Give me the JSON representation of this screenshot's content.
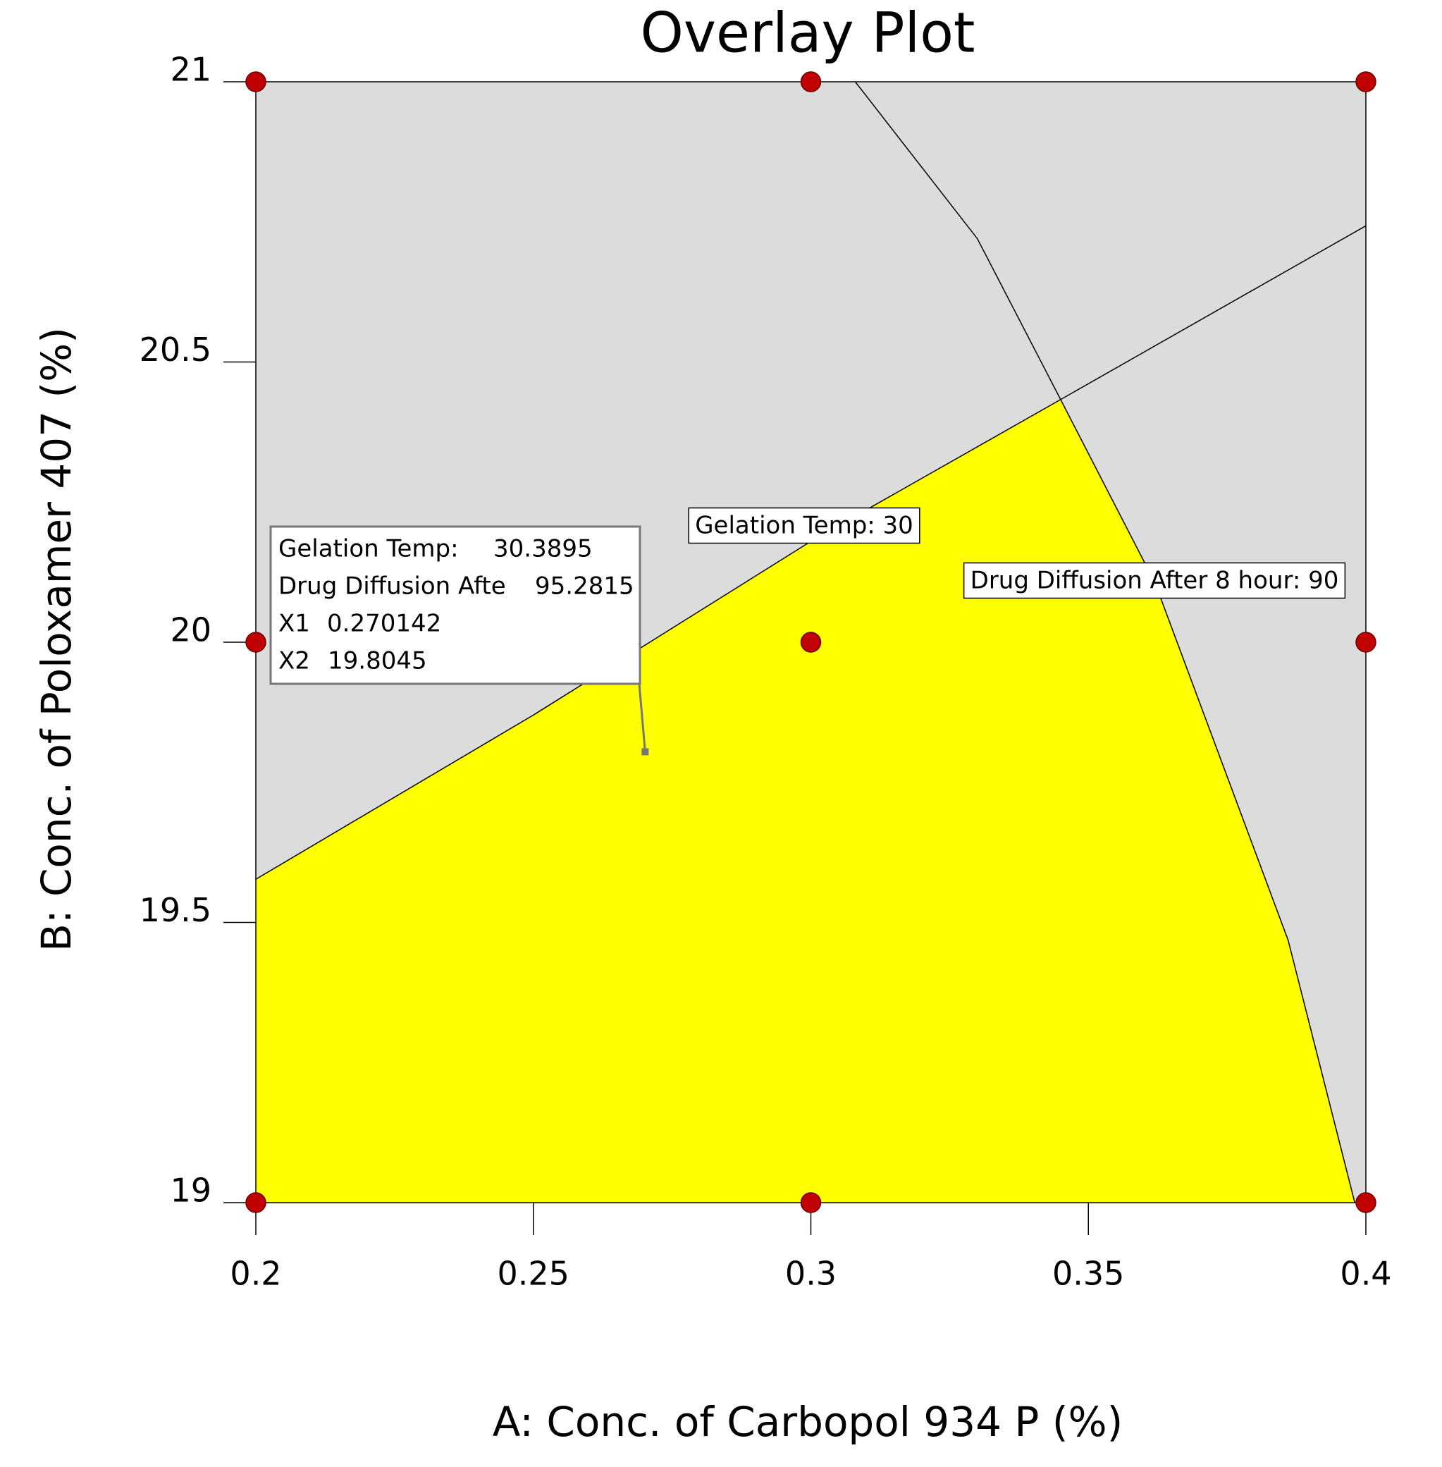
{
  "chart_data": {
    "type": "overlay",
    "title": "Overlay Plot",
    "x_label": "A: Conc. of Carbopol 934 P (%)",
    "y_label": "B: Conc. of Poloxamer 407 (%)",
    "xlim": [
      0.2,
      0.4
    ],
    "ylim": [
      19,
      21
    ],
    "xticks": [
      0.2,
      0.25,
      0.3,
      0.35,
      0.4
    ],
    "yticks": [
      19,
      19.5,
      20,
      20.5,
      21
    ],
    "background_color": "#dcdcdc",
    "region_color": "#ffff00",
    "contours": [
      {
        "label": "Gelation Temp: 30",
        "x": [
          0.2,
          0.25,
          0.3,
          0.345,
          0.4
        ],
        "y": [
          19.577,
          19.87,
          20.18,
          20.433,
          20.743
        ]
      },
      {
        "label": "Drug Diffusion After 8 hour: 90",
        "x": [
          0.308,
          0.33,
          0.345,
          0.362,
          0.386,
          0.398
        ],
        "y": [
          21,
          20.72,
          20.433,
          20.106,
          19.468,
          19
        ]
      }
    ],
    "design_points": {
      "color": "#c00000",
      "x": [
        0.2,
        0.3,
        0.4,
        0.2,
        0.3,
        0.4,
        0.2,
        0.3,
        0.4
      ],
      "y": [
        21,
        21,
        21,
        20,
        20,
        20,
        19,
        19,
        19
      ]
    },
    "flag": {
      "rows": [
        {
          "label": "Gelation Temp:",
          "value": 30.3895
        },
        {
          "label": "Drug Diffusion Afte",
          "value": 95.2815
        },
        {
          "label": "X1",
          "value": 0.270142
        },
        {
          "label": "X2",
          "value": 19.8045
        }
      ]
    }
  }
}
